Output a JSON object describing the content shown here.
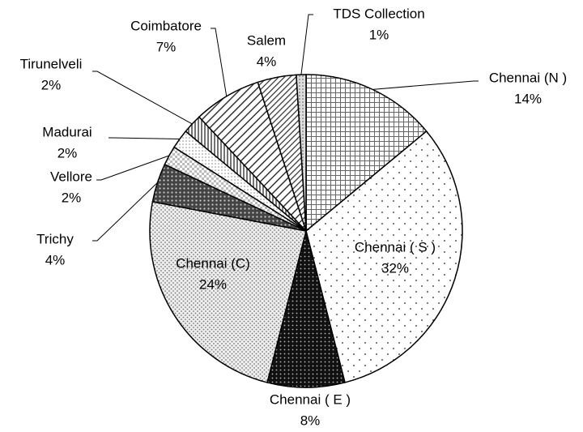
{
  "chart_data": {
    "type": "pie",
    "categories": [
      "Chennai (N )",
      "Chennai ( S )",
      "Chennai ( E )",
      "Chennai (C)",
      "Trichy",
      "Vellore",
      "Madurai",
      "Tirunelveli",
      "Coimbatore",
      "Salem",
      "TDS Collection"
    ],
    "values": [
      14,
      32,
      8,
      24,
      4,
      2,
      2,
      2,
      7,
      4,
      1
    ],
    "value_labels": [
      "14%",
      "32%",
      "8%",
      "24%",
      "4%",
      "2%",
      "2%",
      "2%",
      "7%",
      "4%",
      "1%"
    ]
  }
}
